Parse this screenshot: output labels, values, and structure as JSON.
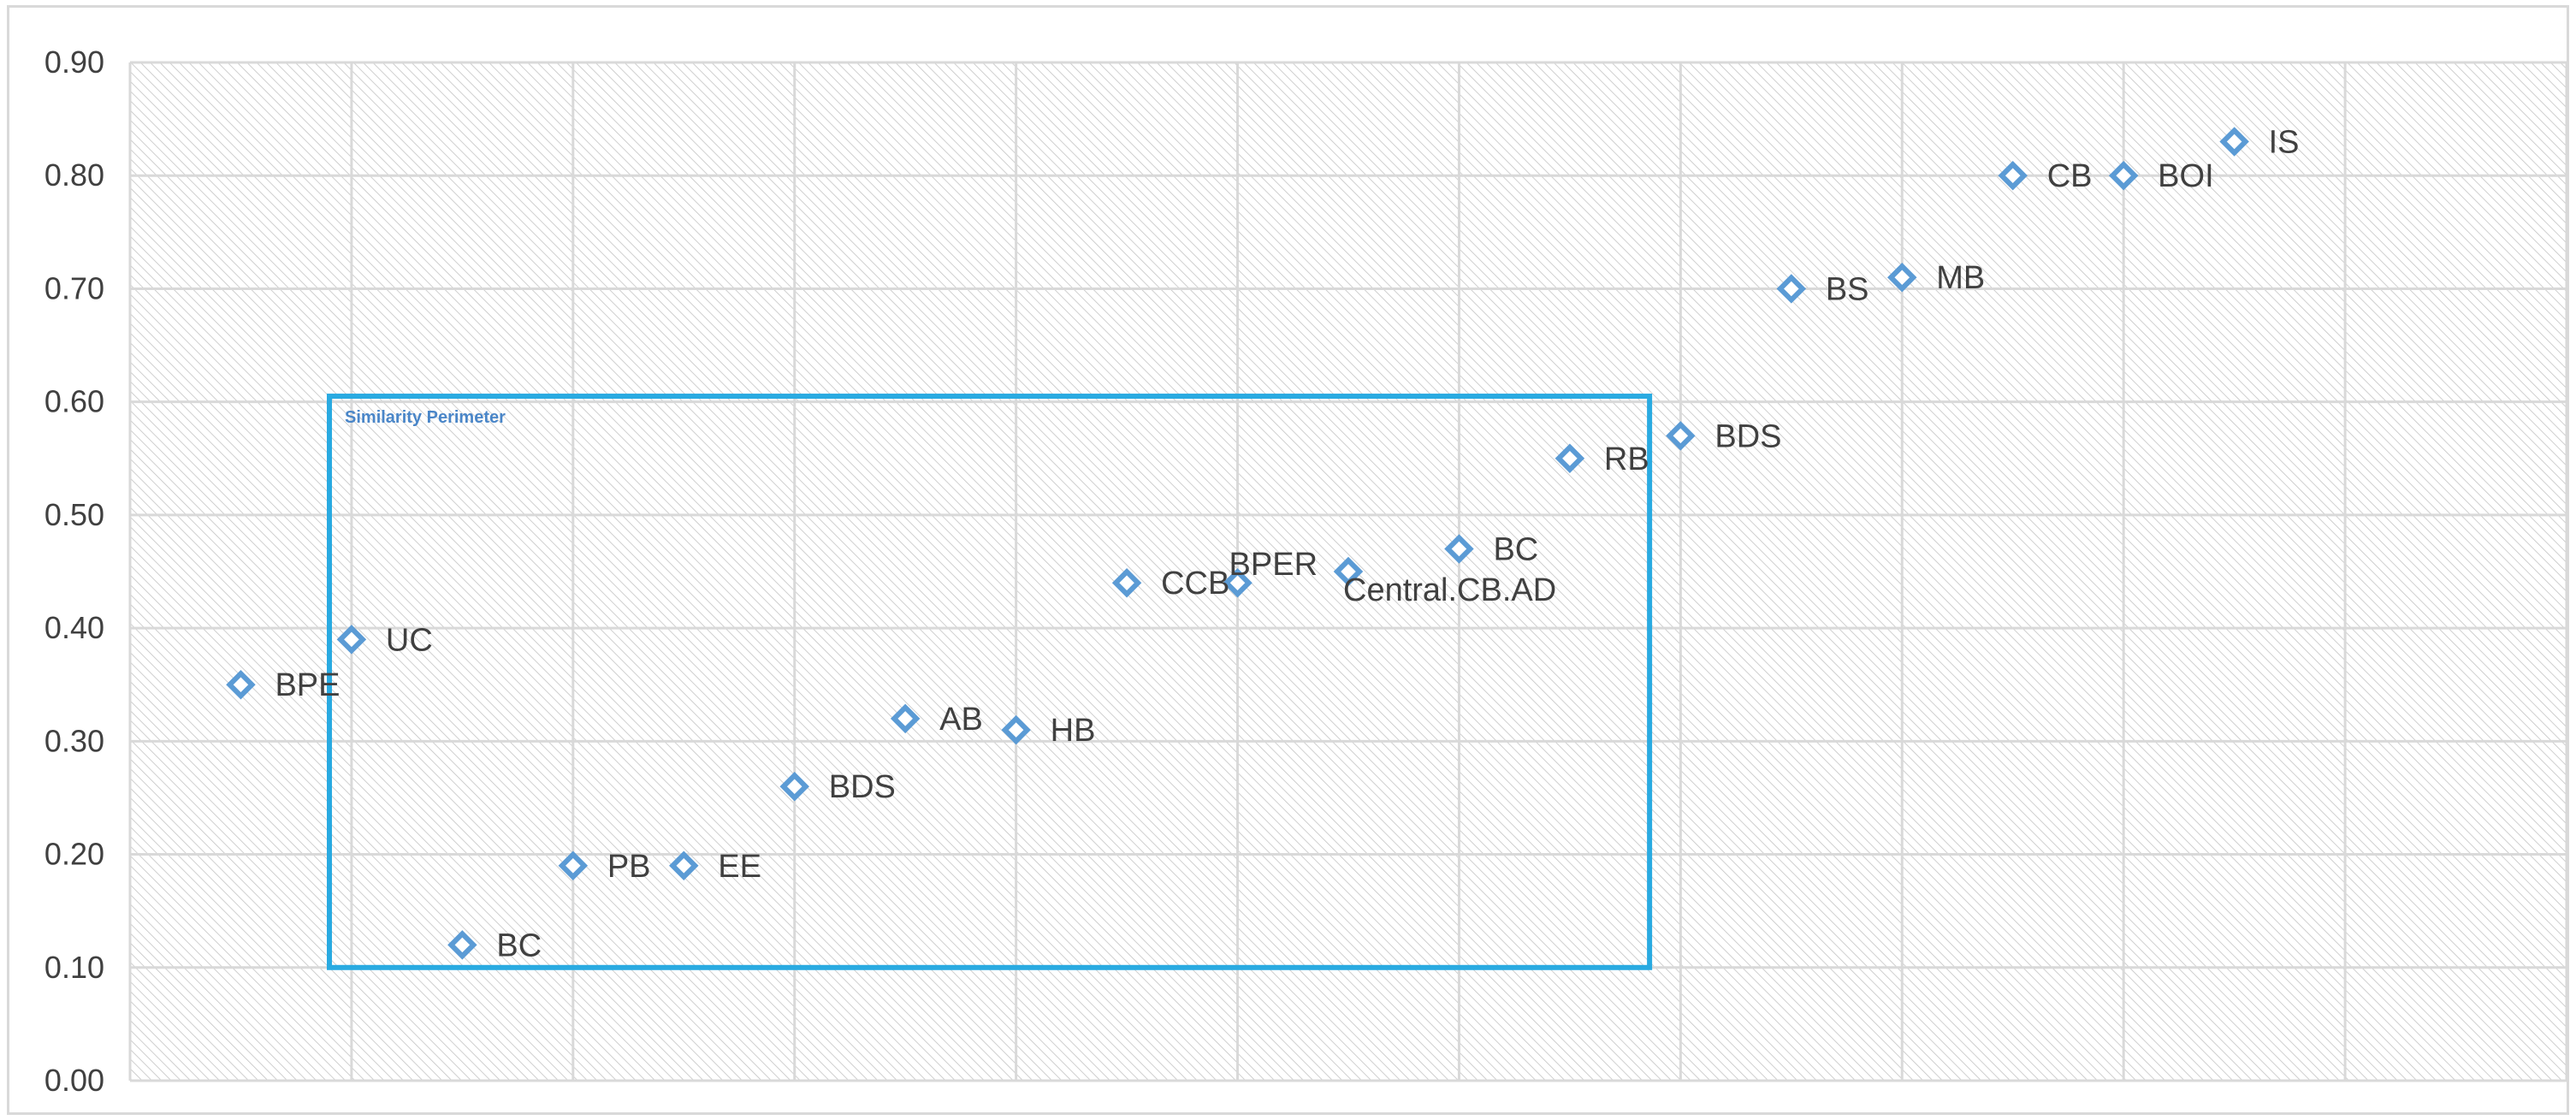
{
  "chart_data": {
    "type": "scatter",
    "title": "",
    "xlabel": "",
    "ylabel": "",
    "ylim": [
      0,
      0.9
    ],
    "xlim": [
      0,
      11
    ],
    "grid": true,
    "legend": "none",
    "y_ticks": [
      "0.00",
      "0.10",
      "0.20",
      "0.30",
      "0.40",
      "0.50",
      "0.60",
      "0.70",
      "0.80",
      "0.90"
    ],
    "marker_color": "#5b9bd5",
    "gridline_color": "#d9d9d9",
    "points": [
      {
        "label": "BPE",
        "x": 0.5,
        "y": 0.35
      },
      {
        "label": "UC",
        "x": 1.0,
        "y": 0.39
      },
      {
        "label": "BC",
        "x": 1.5,
        "y": 0.12
      },
      {
        "label": "PB",
        "x": 2.0,
        "y": 0.19
      },
      {
        "label": "EE",
        "x": 2.5,
        "y": 0.19
      },
      {
        "label": "BDS",
        "x": 3.0,
        "y": 0.26
      },
      {
        "label": "AB",
        "x": 3.5,
        "y": 0.32
      },
      {
        "label": "HB",
        "x": 4.0,
        "y": 0.31
      },
      {
        "label": "CCB",
        "x": 4.5,
        "y": 0.44
      },
      {
        "label": "BPER",
        "x": 5.0,
        "y": 0.44
      },
      {
        "label": "Central.CB.AD",
        "x": 5.5,
        "y": 0.45
      },
      {
        "label": "BC",
        "x": 6.0,
        "y": 0.47
      },
      {
        "label": "RB",
        "x": 6.5,
        "y": 0.55
      },
      {
        "label": "BDS",
        "x": 7.0,
        "y": 0.57
      },
      {
        "label": "BS",
        "x": 7.5,
        "y": 0.7
      },
      {
        "label": "MB",
        "x": 8.0,
        "y": 0.71
      },
      {
        "label": "CB",
        "x": 8.5,
        "y": 0.8
      },
      {
        "label": "BOI",
        "x": 9.0,
        "y": 0.8
      },
      {
        "label": "IS",
        "x": 9.5,
        "y": 0.83
      }
    ],
    "annotations": [
      {
        "text": "Similarity Perimeter",
        "x_range": [
          0.9,
          6.86
        ],
        "y_range": [
          0.1,
          0.605
        ],
        "color": "#29aae1"
      }
    ]
  }
}
